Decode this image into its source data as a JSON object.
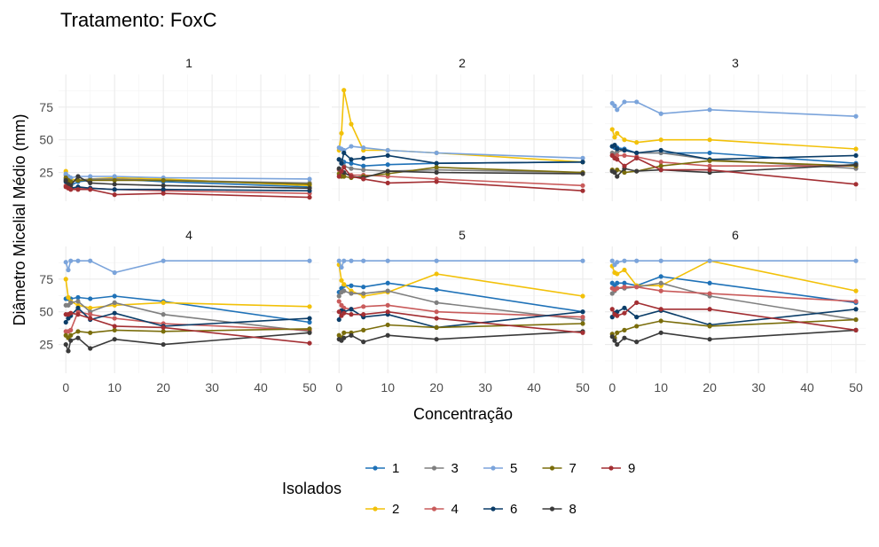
{
  "chart_data": {
    "type": "line",
    "title": "Tratamento: FoxC",
    "xlabel": "Concentração",
    "ylabel": "Diâmetro Micelial Médio (mm)",
    "xlim": [
      -1.5,
      52
    ],
    "ylim": [
      3,
      100
    ],
    "x_ticks": [
      0,
      10,
      20,
      30,
      40,
      50
    ],
    "y_ticks": [
      25,
      50,
      75
    ],
    "legend": {
      "title": "Isolados",
      "position": "bottom"
    },
    "colors": {
      "1": "#1f72b8",
      "2": "#f2c109",
      "3": "#7f7f7f",
      "4": "#c95b5b",
      "5": "#7ba4db",
      "6": "#0b3d68",
      "7": "#7a6d0b",
      "8": "#3a3a3a",
      "9": "#a32f33"
    },
    "legend_order": [
      [
        "1",
        "3",
        "5",
        "7",
        "9"
      ],
      [
        "2",
        "4",
        "6",
        "8"
      ]
    ],
    "x": [
      0,
      0.5,
      1,
      2.5,
      5,
      10,
      20,
      50
    ],
    "panels": [
      {
        "strip": "1",
        "series": [
          {
            "name": "1",
            "values": [
              20,
              17,
              15,
              18,
              19,
              20,
              18,
              14
            ]
          },
          {
            "name": "2",
            "values": [
              26,
              22,
              20,
              19,
              20,
              21,
              20,
              15
            ]
          },
          {
            "name": "3",
            "values": [
              23,
              20,
              18,
              19,
              20,
              20,
              19,
              17
            ]
          },
          {
            "name": "4",
            "values": [
              15,
              14,
              13,
              13,
              13,
              12,
              11,
              9
            ]
          },
          {
            "name": "5",
            "values": [
              24,
              22,
              21,
              22,
              22,
              22,
              21,
              20
            ]
          },
          {
            "name": "6",
            "values": [
              18,
              14,
              13,
              14,
              13,
              12,
              12,
              11
            ]
          },
          {
            "name": "7",
            "values": [
              21,
              19,
              18,
              19,
              19,
              19,
              19,
              16
            ]
          },
          {
            "name": "8",
            "values": [
              19,
              16,
              15,
              22,
              17,
              16,
              15,
              13
            ]
          },
          {
            "name": "9",
            "values": [
              14,
              13,
              12,
              12,
              12,
              8,
              9,
              6
            ]
          }
        ]
      },
      {
        "strip": "2",
        "series": [
          {
            "name": "1",
            "values": [
              35,
              34,
              33,
              32,
              30,
              31,
              32,
              33
            ]
          },
          {
            "name": "2",
            "values": [
              42,
              55,
              88,
              62,
              42,
              42,
              40,
              33
            ]
          },
          {
            "name": "3",
            "values": [
              35,
              33,
              30,
              28,
              27,
              26,
              27,
              25
            ]
          },
          {
            "name": "4",
            "values": [
              27,
              25,
              24,
              23,
              23,
              22,
              20,
              15
            ]
          },
          {
            "name": "5",
            "values": [
              44,
              43,
              42,
              45,
              44,
              42,
              40,
              36
            ]
          },
          {
            "name": "6",
            "values": [
              35,
              32,
              40,
              35,
              36,
              38,
              32,
              33
            ]
          },
          {
            "name": "7",
            "values": [
              24,
              22,
              22,
              21,
              22,
              24,
              29,
              25
            ]
          },
          {
            "name": "8",
            "values": [
              28,
              26,
              25,
              22,
              21,
              26,
              25,
              24
            ]
          },
          {
            "name": "9",
            "values": [
              22,
              26,
              29,
              22,
              20,
              17,
              18,
              11
            ]
          }
        ]
      },
      {
        "strip": "3",
        "series": [
          {
            "name": "1",
            "values": [
              45,
              44,
              44,
              43,
              40,
              40,
              40,
              32
            ]
          },
          {
            "name": "2",
            "values": [
              58,
              52,
              55,
              50,
              48,
              50,
              50,
              43
            ]
          },
          {
            "name": "3",
            "values": [
              40,
              39,
              41,
              42,
              40,
              40,
              35,
              28
            ]
          },
          {
            "name": "4",
            "values": [
              38,
              36,
              38,
              38,
              37,
              33,
              30,
              30
            ]
          },
          {
            "name": "5",
            "values": [
              78,
              76,
              73,
              79,
              79,
              70,
              73,
              68
            ]
          },
          {
            "name": "6",
            "values": [
              45,
              46,
              43,
              42,
              40,
              42,
              35,
              38
            ]
          },
          {
            "name": "7",
            "values": [
              27,
              25,
              27,
              25,
              26,
              30,
              34,
              30
            ]
          },
          {
            "name": "8",
            "values": [
              26,
              25,
              22,
              28,
              26,
              27,
              25,
              31
            ]
          },
          {
            "name": "9",
            "values": [
              38,
              36,
              35,
              30,
              36,
              27,
              27,
              16
            ]
          }
        ]
      },
      {
        "strip": "4",
        "series": [
          {
            "name": "1",
            "values": [
              60,
              60,
              60,
              61,
              60,
              62,
              58,
              42
            ]
          },
          {
            "name": "2",
            "values": [
              75,
              61,
              58,
              55,
              53,
              55,
              57,
              54
            ]
          },
          {
            "name": "3",
            "values": [
              55,
              55,
              57,
              58,
              50,
              57,
              48,
              35
            ]
          },
          {
            "name": "4",
            "values": [
              35,
              35,
              36,
              50,
              48,
              45,
              41,
              36
            ]
          },
          {
            "name": "5",
            "values": [
              88,
              82,
              89,
              89,
              89,
              80,
              89,
              89
            ]
          },
          {
            "name": "6",
            "values": [
              42,
              45,
              47,
              53,
              44,
              49,
              39,
              45
            ]
          },
          {
            "name": "7",
            "values": [
              32,
              30,
              32,
              35,
              34,
              36,
              35,
              37
            ]
          },
          {
            "name": "8",
            "values": [
              25,
              20,
              28,
              30,
              22,
              29,
              25,
              34
            ]
          },
          {
            "name": "9",
            "values": [
              48,
              48,
              49,
              48,
              45,
              39,
              38,
              26
            ]
          }
        ]
      },
      {
        "strip": "5",
        "series": [
          {
            "name": "1",
            "values": [
              65,
              68,
              70,
              70,
              69,
              72,
              67,
              50
            ]
          },
          {
            "name": "2",
            "values": [
              86,
              74,
              71,
              66,
              62,
              65,
              79,
              62
            ]
          },
          {
            "name": "3",
            "values": [
              62,
              65,
              66,
              64,
              64,
              66,
              57,
              44
            ]
          },
          {
            "name": "4",
            "values": [
              58,
              55,
              53,
              52,
              54,
              55,
              50,
              46
            ]
          },
          {
            "name": "5",
            "values": [
              89,
              84,
              89,
              89,
              89,
              89,
              89,
              89
            ]
          },
          {
            "name": "6",
            "values": [
              44,
              51,
              50,
              52,
              46,
              48,
              38,
              50
            ]
          },
          {
            "name": "7",
            "values": [
              32,
              30,
              34,
              34,
              36,
              40,
              38,
              41
            ]
          },
          {
            "name": "8",
            "values": [
              29,
              28,
              30,
              32,
              27,
              32,
              29,
              35
            ]
          },
          {
            "name": "9",
            "values": [
              50,
              47,
              49,
              48,
              48,
              50,
              45,
              34
            ]
          }
        ]
      },
      {
        "strip": "6",
        "series": [
          {
            "name": "1",
            "values": [
              72,
              70,
              72,
              72,
              70,
              77,
              72,
              57
            ]
          },
          {
            "name": "2",
            "values": [
              85,
              80,
              79,
              82,
              70,
              70,
              89,
              66
            ]
          },
          {
            "name": "3",
            "values": [
              64,
              66,
              68,
              68,
              69,
              72,
              62,
              44
            ]
          },
          {
            "name": "4",
            "values": [
              68,
              67,
              68,
              69,
              69,
              66,
              64,
              58
            ]
          },
          {
            "name": "5",
            "values": [
              89,
              86,
              88,
              89,
              89,
              89,
              89,
              89
            ]
          },
          {
            "name": "6",
            "values": [
              46,
              49,
              50,
              53,
              46,
              51,
              40,
              52
            ]
          },
          {
            "name": "7",
            "values": [
              33,
              30,
              34,
              36,
              39,
              43,
              39,
              44
            ]
          },
          {
            "name": "8",
            "values": [
              31,
              28,
              25,
              30,
              27,
              34,
              29,
              36
            ]
          },
          {
            "name": "9",
            "values": [
              52,
              48,
              47,
              49,
              57,
              52,
              52,
              36
            ]
          }
        ]
      }
    ]
  }
}
